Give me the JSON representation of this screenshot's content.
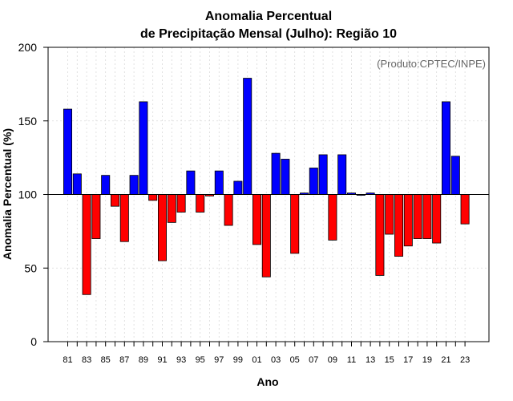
{
  "chart_data": {
    "type": "bar",
    "title_line1": "Anomalia Percentual",
    "title_line2": "de Precipitação Mensal (Julho): Região 10",
    "xlabel": "Ano",
    "ylabel": "Anomalia Percentual (%)",
    "annotation": "(Produto:CPTEC/INPE)",
    "baseline": 100,
    "ylim": [
      0,
      200
    ],
    "yticks": [
      0,
      50,
      100,
      150,
      200
    ],
    "xtick_labels": [
      "81",
      "83",
      "85",
      "87",
      "89",
      "91",
      "93",
      "95",
      "97",
      "99",
      "01",
      "03",
      "05",
      "07",
      "09",
      "11",
      "13",
      "15",
      "17",
      "19",
      "21",
      "23"
    ],
    "categories": [
      "1981",
      "1982",
      "1983",
      "1984",
      "1985",
      "1986",
      "1987",
      "1988",
      "1989",
      "1990",
      "1991",
      "1992",
      "1993",
      "1994",
      "1995",
      "1996",
      "1997",
      "1998",
      "1999",
      "2000",
      "2001",
      "2002",
      "2003",
      "2004",
      "2005",
      "2006",
      "2007",
      "2008",
      "2009",
      "2010",
      "2011",
      "2012",
      "2013",
      "2014",
      "2015",
      "2016",
      "2017",
      "2018",
      "2019",
      "2020",
      "2021",
      "2022",
      "2023"
    ],
    "values": [
      158,
      114,
      32,
      70,
      113,
      92,
      68,
      113,
      163,
      96,
      55,
      81,
      88,
      116,
      88,
      99,
      116,
      79,
      109,
      179,
      66,
      44,
      128,
      124,
      60,
      101,
      118,
      127,
      69,
      127,
      101,
      100,
      101,
      45,
      73,
      58,
      65,
      70,
      70,
      67,
      163,
      126,
      80
    ],
    "colors": {
      "above": "#0000ff",
      "below": "#ff0000",
      "edge": "#000000",
      "grid": "#d9d9d9"
    }
  }
}
